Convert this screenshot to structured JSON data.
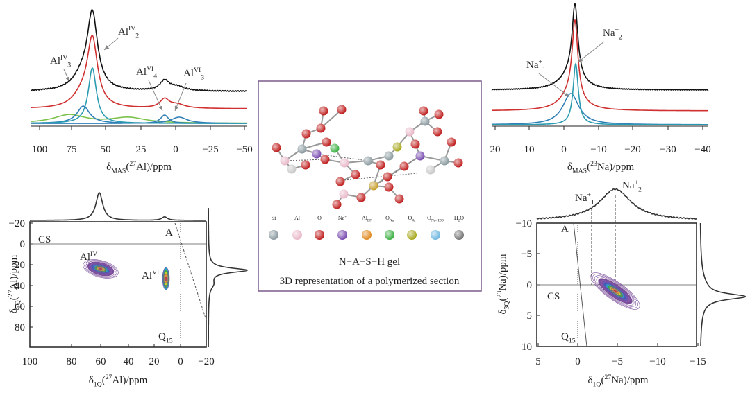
{
  "panels": [
    {
      "xticks": [
        "100",
        "75",
        "50",
        "25",
        "0",
        "−25",
        "−50"
      ],
      "xlabel": [
        {
          "base": "δ"
        },
        {
          "sub": "MAS"
        },
        {
          "base": "("
        },
        {
          "sup": "27"
        },
        {
          "base": "Al)/ppm"
        }
      ],
      "annotations": [
        [
          {
            "base": "Al"
          },
          {
            "sup": "IV"
          },
          {
            "sub": "3"
          }
        ],
        [
          {
            "base": "Al"
          },
          {
            "sup": "IV"
          },
          {
            "sub": "2"
          }
        ],
        [
          {
            "base": "Al"
          },
          {
            "sup": "VI"
          },
          {
            "sub": "4"
          }
        ],
        [
          {
            "base": "Al"
          },
          {
            "sup": "VI"
          },
          {
            "sub": "3"
          }
        ]
      ]
    },
    {
      "xticks": [
        "20",
        "10",
        "0",
        "−10",
        "−20",
        "−30",
        "−40"
      ],
      "xlabel": [
        {
          "base": "δ"
        },
        {
          "sub": "MAS"
        },
        {
          "base": "("
        },
        {
          "sup": "23"
        },
        {
          "base": "Na)/ppm"
        }
      ],
      "annotations": [
        [
          {
            "base": "Na"
          },
          {
            "sup": "+"
          },
          {
            "sub": "1"
          }
        ],
        [
          {
            "base": "Na"
          },
          {
            "sup": "+"
          },
          {
            "sub": "2"
          }
        ]
      ]
    },
    {
      "xticks": [
        "100",
        "80",
        "60",
        "40",
        "20",
        "0",
        "−20"
      ],
      "yticks": [
        "−20",
        "0",
        "20",
        "40",
        "60",
        "80"
      ],
      "xlabel": [
        {
          "base": "δ"
        },
        {
          "sub": "1Q"
        },
        {
          "base": "("
        },
        {
          "sup": "27"
        },
        {
          "base": "Al)/ppm"
        }
      ],
      "ylabel": [
        {
          "base": "δ"
        },
        {
          "sub": "3Q"
        },
        {
          "base": "("
        },
        {
          "sup": "27"
        },
        {
          "base": "Al)/ppm"
        }
      ],
      "annotations": [
        [
          {
            "base": "CS"
          }
        ],
        [
          {
            "base": "A"
          }
        ],
        [
          {
            "base": "Q"
          },
          {
            "sub": "15"
          }
        ],
        [
          {
            "base": "Al"
          },
          {
            "sup": "IV"
          }
        ],
        [
          {
            "base": "Al"
          },
          {
            "sup": "VI"
          }
        ]
      ]
    },
    {
      "xticks": [
        "5",
        "0",
        "−5",
        "−10",
        "−15"
      ],
      "yticks": [
        "−10",
        "−5",
        "0",
        "5",
        "10"
      ],
      "xlabel": [
        {
          "base": "δ"
        },
        {
          "sub": "1Q"
        },
        {
          "base": "("
        },
        {
          "sup": "27"
        },
        {
          "base": "Na)/ppm"
        }
      ],
      "ylabel": [
        {
          "base": "δ"
        },
        {
          "sub": "3Q"
        },
        {
          "base": "("
        },
        {
          "sup": "23"
        },
        {
          "base": "Na)/ppm"
        }
      ],
      "annotations": [
        [
          {
            "base": "A"
          }
        ],
        [
          {
            "base": "CS"
          }
        ],
        [
          {
            "base": "Q"
          },
          {
            "sub": "15"
          }
        ],
        [
          {
            "base": "Na"
          },
          {
            "sup": "+"
          },
          {
            "sub": "1"
          }
        ],
        [
          {
            "base": "Na"
          },
          {
            "sup": "+"
          },
          {
            "sub": "2"
          }
        ]
      ]
    }
  ],
  "center": {
    "legend": [
      [
        {
          "base": "Si"
        }
      ],
      [
        {
          "base": "Al"
        }
      ],
      [
        {
          "base": "O"
        }
      ],
      [
        {
          "base": "Na"
        },
        {
          "sup": "+"
        }
      ],
      [
        {
          "base": "Al"
        },
        {
          "sub": "EF"
        }
      ],
      [
        {
          "base": "O"
        },
        {
          "sub": "Na"
        }
      ],
      [
        {
          "base": "O"
        },
        {
          "sub": "Al"
        }
      ],
      [
        {
          "base": "O"
        },
        {
          "sub": "Na-H2O"
        }
      ],
      [
        {
          "base": "H"
        },
        {
          "sub": "2"
        },
        {
          "base": "O"
        }
      ]
    ],
    "caption": [
      "N−A−S−H gel",
      "3D representation of a polymerized section"
    ]
  }
}
